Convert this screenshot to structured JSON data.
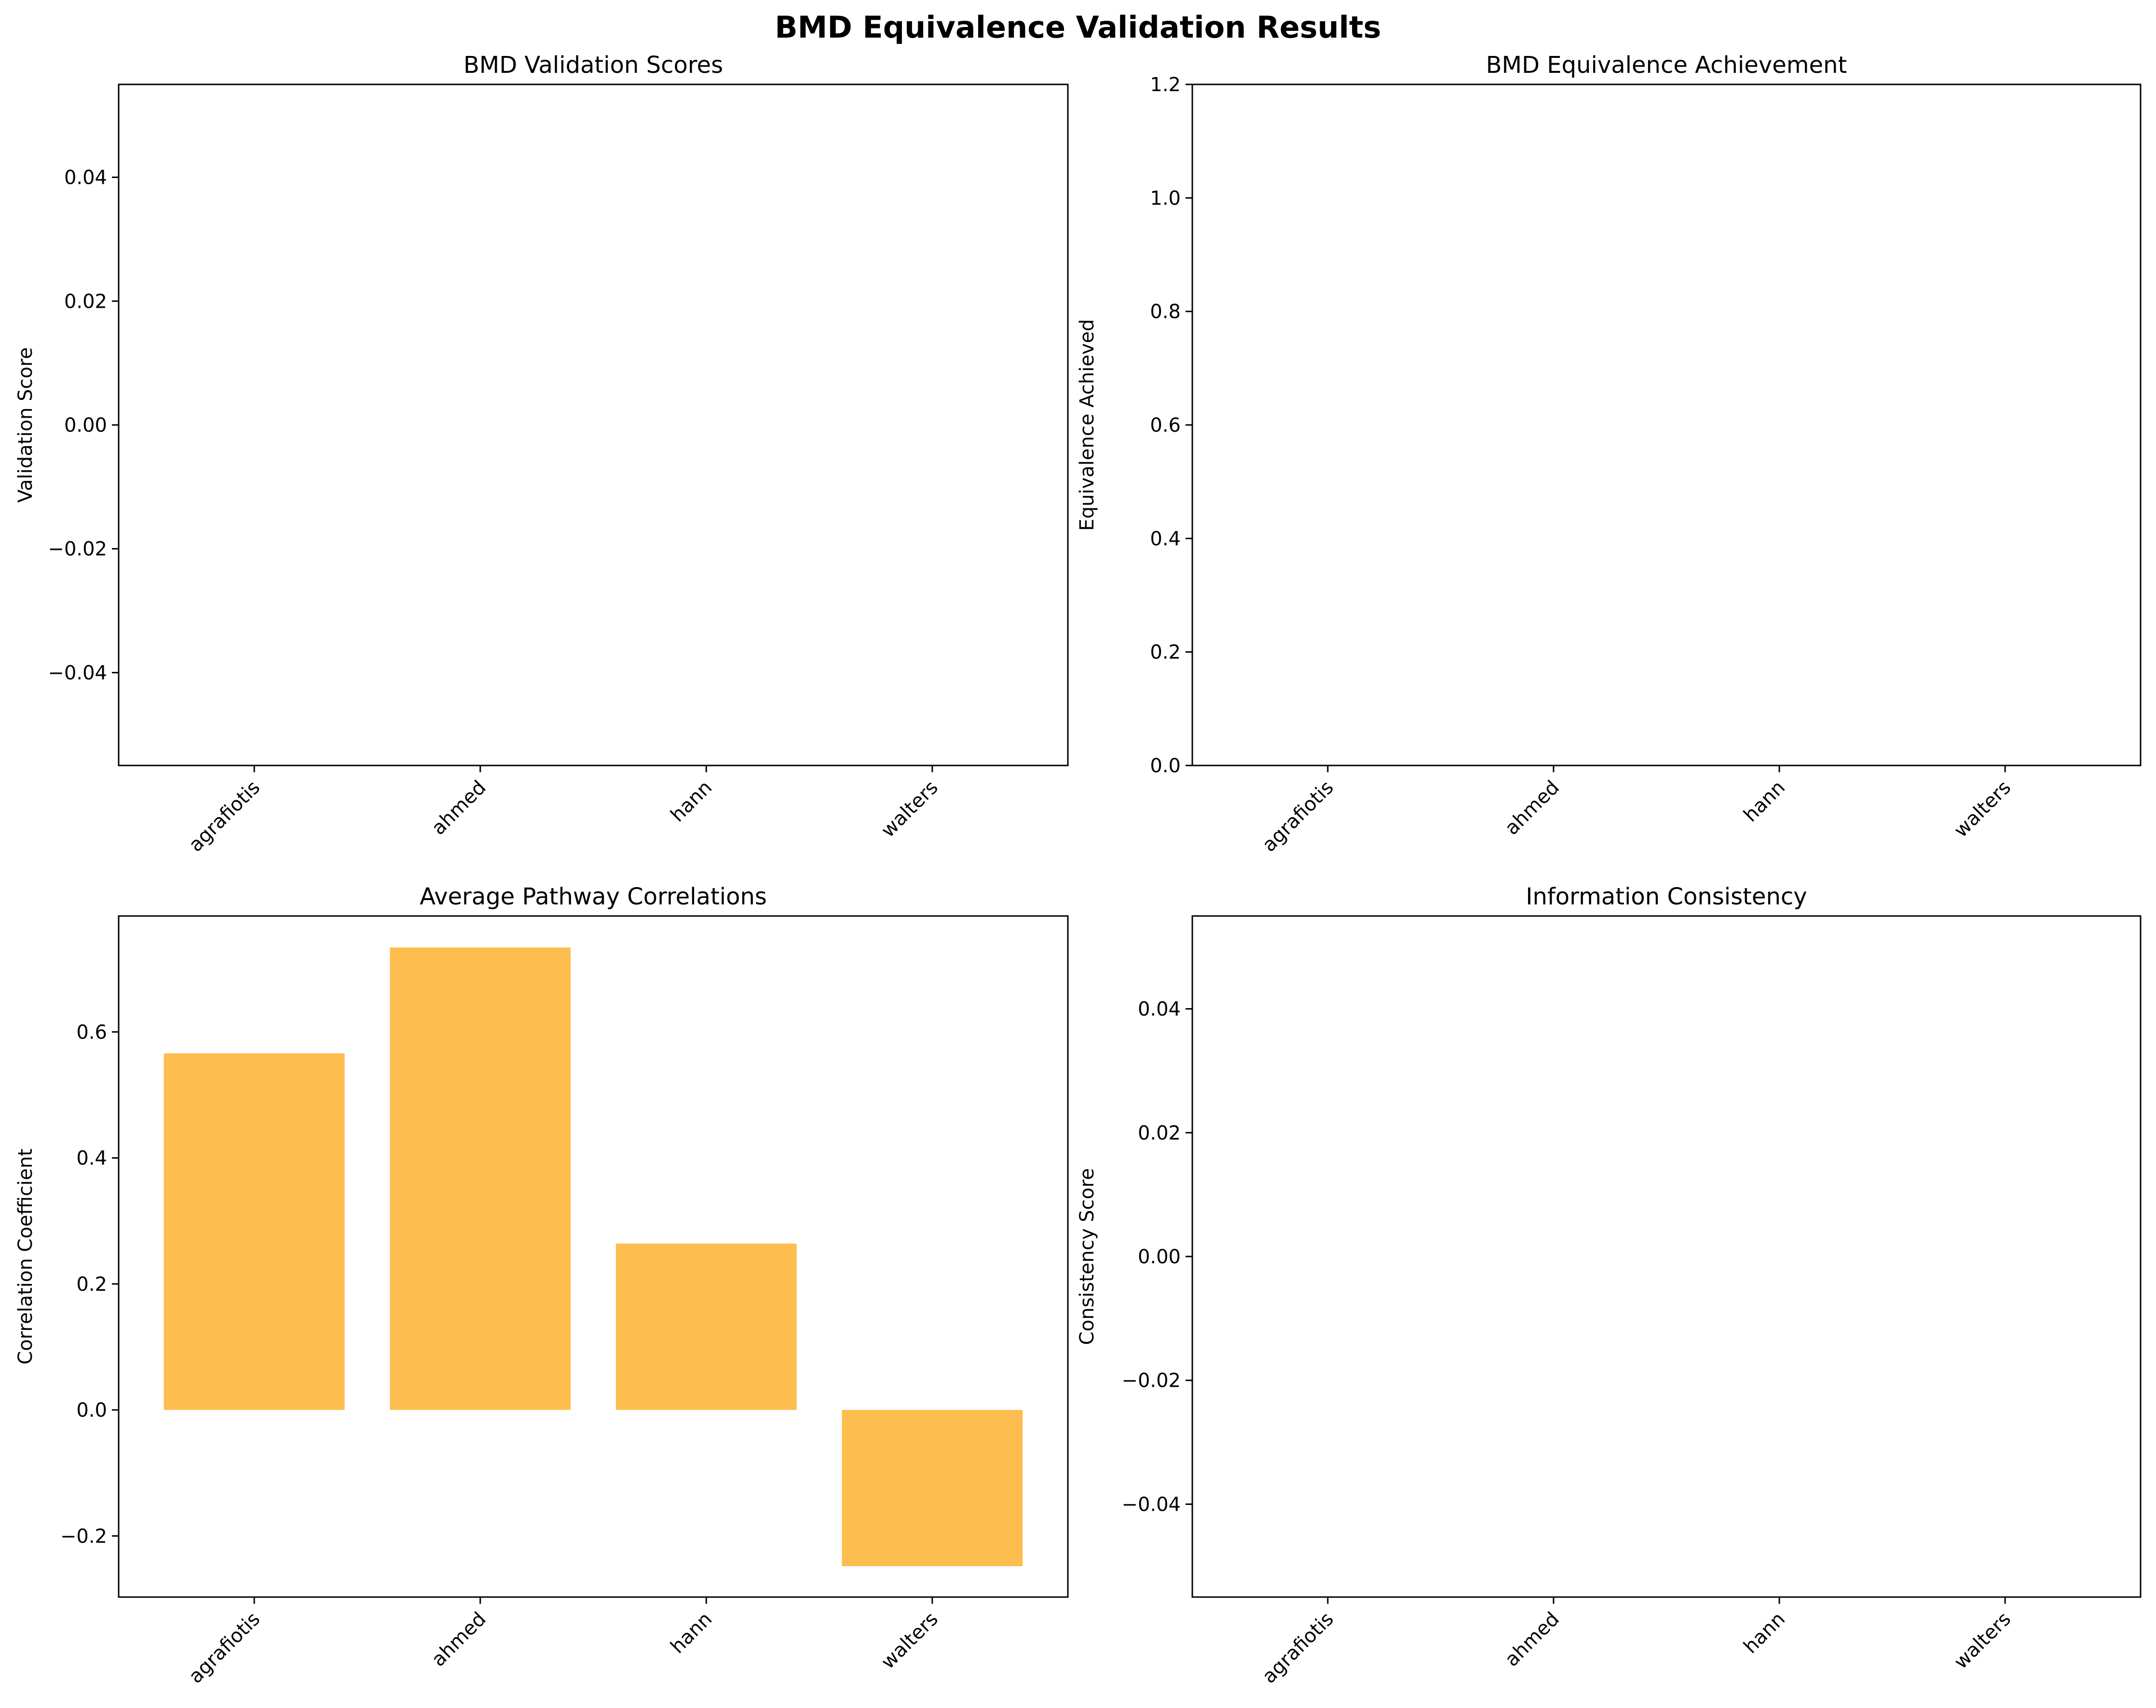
{
  "figure": {
    "title": "BMD Equivalence Validation Results",
    "bar_color": "#FDBE4F"
  },
  "chart_data": [
    {
      "type": "bar",
      "title": "BMD Validation Scores",
      "xlabel": "",
      "ylabel": "Validation Score",
      "categories": [
        "agrafiotis",
        "ahmed",
        "hann",
        "walters"
      ],
      "values": [
        0,
        0,
        0,
        0
      ],
      "ylim": [
        -0.055,
        0.055
      ],
      "yticks": [
        -0.04,
        -0.02,
        0.0,
        0.02,
        0.04
      ],
      "ytick_labels": [
        "−0.04",
        "−0.02",
        "0.00",
        "0.02",
        "0.04"
      ],
      "grid": false
    },
    {
      "type": "bar",
      "title": "BMD Equivalence Achievement",
      "xlabel": "",
      "ylabel": "Equivalence Achieved",
      "categories": [
        "agrafiotis",
        "ahmed",
        "hann",
        "walters"
      ],
      "values": [
        0,
        0,
        0,
        0
      ],
      "ylim": [
        0,
        1.2
      ],
      "yticks": [
        0.0,
        0.2,
        0.4,
        0.6,
        0.8,
        1.0,
        1.2
      ],
      "ytick_labels": [
        "0.0",
        "0.2",
        "0.4",
        "0.6",
        "0.8",
        "1.0",
        "1.2"
      ],
      "grid": false
    },
    {
      "type": "bar",
      "title": "Average Pathway Correlations",
      "xlabel": "",
      "ylabel": "Correlation Coefficient",
      "categories": [
        "agrafiotis",
        "ahmed",
        "hann",
        "walters"
      ],
      "values": [
        0.566,
        0.734,
        0.264,
        -0.248
      ],
      "ylim": [
        -0.297,
        0.784
      ],
      "yticks": [
        -0.2,
        0.0,
        0.2,
        0.4,
        0.6
      ],
      "ytick_labels": [
        "−0.2",
        "0.0",
        "0.2",
        "0.4",
        "0.6"
      ],
      "grid": false
    },
    {
      "type": "bar",
      "title": "Information Consistency",
      "xlabel": "",
      "ylabel": "Consistency Score",
      "categories": [
        "agrafiotis",
        "ahmed",
        "hann",
        "walters"
      ],
      "values": [
        0,
        0,
        0,
        0
      ],
      "ylim": [
        -0.055,
        0.055
      ],
      "yticks": [
        -0.04,
        -0.02,
        0.0,
        0.02,
        0.04
      ],
      "ytick_labels": [
        "−0.04",
        "−0.02",
        "0.00",
        "0.02",
        "0.04"
      ],
      "grid": false
    }
  ]
}
